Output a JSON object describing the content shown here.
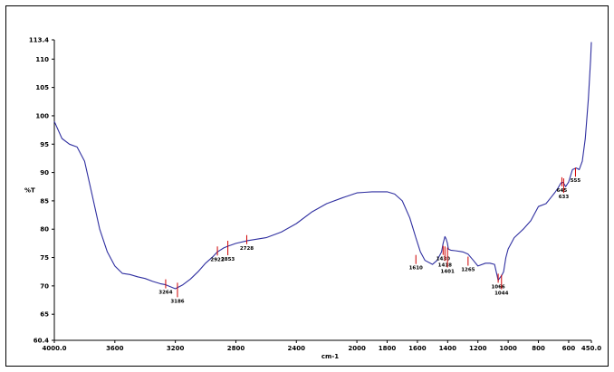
{
  "chart_data": {
    "type": "line",
    "title": "",
    "xlabel": "cm-1",
    "ylabel": "%T",
    "xlim": [
      4000.0,
      450.0
    ],
    "ylim": [
      60.4,
      113.4
    ],
    "x_ticks": [
      "4000.0",
      "3600",
      "3200",
      "2800",
      "2400",
      "2000",
      "1800",
      "1600",
      "1400",
      "1200",
      "1000",
      "800",
      "600",
      "450.0"
    ],
    "y_ticks": [
      "60.4",
      "65",
      "70",
      "75",
      "80",
      "85",
      "90",
      "95",
      "100",
      "105",
      "110",
      "113.4"
    ],
    "series": [
      {
        "color": "#2f2fa0",
        "x": [
          4000,
          3950,
          3900,
          3850,
          3800,
          3750,
          3700,
          3650,
          3600,
          3550,
          3500,
          3450,
          3400,
          3350,
          3300,
          3264,
          3200,
          3150,
          3100,
          3050,
          3000,
          2950,
          2922,
          2880,
          2853,
          2800,
          2720,
          2600,
          2500,
          2400,
          2300,
          2200,
          2100,
          2000,
          1950,
          1900,
          1850,
          1800,
          1750,
          1700,
          1650,
          1610,
          1580,
          1550,
          1500,
          1470,
          1440,
          1430,
          1418,
          1410,
          1401,
          1395,
          1380,
          1350,
          1300,
          1265,
          1230,
          1200,
          1150,
          1120,
          1090,
          1066,
          1050,
          1044,
          1030,
          1015,
          1000,
          960,
          900,
          850,
          800,
          750,
          720,
          690,
          670,
          655,
          645,
          635,
          620,
          600,
          575,
          550,
          530,
          510,
          490,
          470,
          455,
          450
        ],
        "y": [
          99,
          96,
          95,
          94.5,
          92,
          86,
          80,
          76,
          73.5,
          72.2,
          72,
          71.6,
          71.3,
          70.8,
          70.4,
          70.2,
          69.5,
          70.2,
          71.2,
          72.5,
          74,
          75.2,
          76,
          76.7,
          77,
          77.5,
          78,
          78.5,
          79.5,
          81,
          83,
          84.5,
          85.5,
          86.4,
          86.5,
          86.6,
          86.6,
          86.6,
          86.2,
          85,
          82,
          78.5,
          76,
          74.5,
          73.8,
          74.5,
          76,
          77.5,
          78.7,
          78.3,
          77.5,
          76.5,
          76.3,
          76.2,
          76,
          75.6,
          74.5,
          73.5,
          74,
          74,
          73.8,
          71,
          71.6,
          71.8,
          72.5,
          75,
          76.5,
          78.5,
          80,
          81.5,
          84,
          84.5,
          85.5,
          86.5,
          87.3,
          88,
          88.3,
          88.2,
          87.5,
          88.3,
          90.5,
          90.8,
          90.5,
          92,
          96,
          103,
          110,
          113
        ]
      }
    ],
    "peak_labels": [
      {
        "x": 3264,
        "y": 70.2,
        "label": "3264"
      },
      {
        "x": 3186,
        "y": 69.6,
        "label": "3186"
      },
      {
        "x": 2922,
        "y": 76.0,
        "label": "2922"
      },
      {
        "x": 2853,
        "y": 77.0,
        "label": "2853"
      },
      {
        "x": 2728,
        "y": 78.0,
        "label": "2728"
      },
      {
        "x": 1610,
        "y": 74.5,
        "label": "1610"
      },
      {
        "x": 1430,
        "y": 76.1,
        "label": "1430"
      },
      {
        "x": 1418,
        "y": 76.0,
        "label": "1418"
      },
      {
        "x": 1401,
        "y": 75.8,
        "label": "1401"
      },
      {
        "x": 1265,
        "y": 74.2,
        "label": "1265"
      },
      {
        "x": 1066,
        "y": 71.2,
        "label": "1066"
      },
      {
        "x": 1044,
        "y": 71.0,
        "label": "1044"
      },
      {
        "x": 645,
        "y": 88.2,
        "label": "645"
      },
      {
        "x": 633,
        "y": 88.0,
        "label": "633"
      },
      {
        "x": 555,
        "y": 89.9,
        "label": "555"
      }
    ]
  }
}
